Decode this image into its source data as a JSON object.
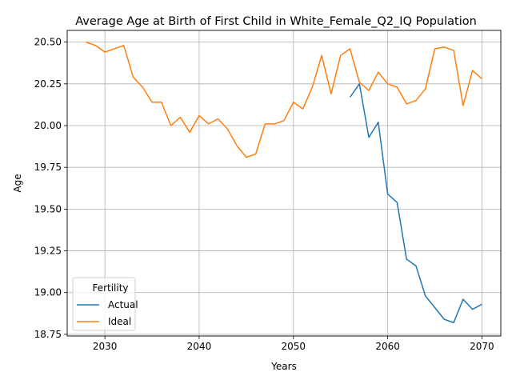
{
  "chart_data": {
    "type": "line",
    "title": "Average Age at Birth of First Child in White_Female_Q2_IQ Population",
    "xlabel": "Years",
    "ylabel": "Age",
    "xlim": [
      2026,
      2072
    ],
    "ylim": [
      18.74,
      20.57
    ],
    "x_ticks": [
      2030,
      2040,
      2050,
      2060,
      2070
    ],
    "y_ticks": [
      18.75,
      19.0,
      19.25,
      19.5,
      19.75,
      20.0,
      20.25,
      20.5
    ],
    "x_tick_labels": [
      "2030",
      "2040",
      "2050",
      "2060",
      "2070"
    ],
    "y_tick_labels": [
      "18.75",
      "19.00",
      "19.25",
      "19.50",
      "19.75",
      "20.00",
      "20.25",
      "20.50"
    ],
    "grid": true,
    "legend": {
      "title": "Fertility",
      "position": "lower-left"
    },
    "series": [
      {
        "name": "Actual",
        "color": "#1f77b4",
        "x": [
          2056,
          2057,
          2058,
          2059,
          2060,
          2061,
          2062,
          2063,
          2064,
          2065,
          2066,
          2067,
          2068,
          2069,
          2070
        ],
        "values": [
          20.17,
          20.25,
          19.93,
          20.02,
          19.59,
          19.54,
          19.2,
          19.16,
          18.98,
          18.91,
          18.84,
          18.82,
          18.96,
          18.9,
          18.93
        ]
      },
      {
        "name": "Ideal",
        "color": "#ff7f0e",
        "x": [
          2028,
          2029,
          2030,
          2031,
          2032,
          2033,
          2034,
          2035,
          2036,
          2037,
          2038,
          2039,
          2040,
          2041,
          2042,
          2043,
          2044,
          2045,
          2046,
          2047,
          2048,
          2049,
          2050,
          2051,
          2052,
          2053,
          2054,
          2055,
          2056,
          2057,
          2058,
          2059,
          2060,
          2061,
          2062,
          2063,
          2064,
          2065,
          2066,
          2067,
          2068,
          2069,
          2070
        ],
        "values": [
          20.5,
          20.48,
          20.44,
          20.46,
          20.48,
          20.29,
          20.23,
          20.14,
          20.14,
          20.0,
          20.05,
          19.96,
          20.06,
          20.01,
          20.04,
          19.98,
          19.88,
          19.81,
          19.83,
          20.01,
          20.01,
          20.03,
          20.14,
          20.1,
          20.23,
          20.42,
          20.19,
          20.42,
          20.46,
          20.26,
          20.21,
          20.32,
          20.25,
          20.23,
          20.13,
          20.15,
          20.22,
          20.46,
          20.47,
          20.45,
          20.12,
          20.33,
          20.28
        ]
      }
    ]
  }
}
